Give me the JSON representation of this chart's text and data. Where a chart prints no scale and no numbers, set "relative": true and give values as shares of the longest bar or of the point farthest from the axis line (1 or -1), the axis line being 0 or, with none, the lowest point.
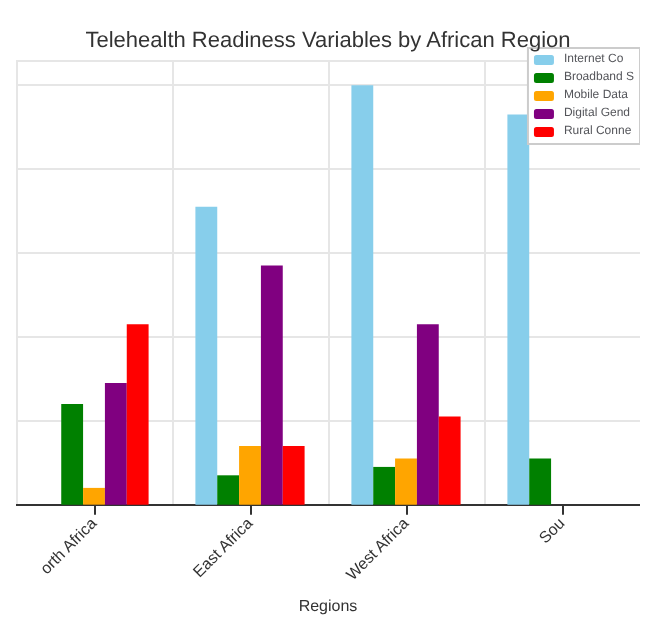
{
  "chart_data": {
    "type": "bar",
    "title": "Telehealth Readiness Variables by African Region",
    "xlabel": "Regions",
    "categories": [
      "orth Africa",
      "East Africa",
      "West Africa",
      "Sou"
    ],
    "relative": true,
    "series": [
      {
        "name": "Internet Co",
        "color": "#87ceeb",
        "values": [
          null,
          0.71,
          1,
          0.93
        ]
      },
      {
        "name": "Broadband S",
        "color": "#008000",
        "values": [
          0.24,
          0.07,
          0.09,
          0.11
        ]
      },
      {
        "name": "Mobile Data",
        "color": "#ffa500",
        "values": [
          0.04,
          0.14,
          0.11,
          null
        ]
      },
      {
        "name": "Digital Gend",
        "color": "#800080",
        "values": [
          0.29,
          0.57,
          0.43,
          null
        ]
      },
      {
        "name": "Rural Conne",
        "color": "#ff0000",
        "values": [
          0.43,
          0.14,
          0.21,
          null
        ]
      }
    ],
    "grid": true,
    "legend": "top right"
  }
}
